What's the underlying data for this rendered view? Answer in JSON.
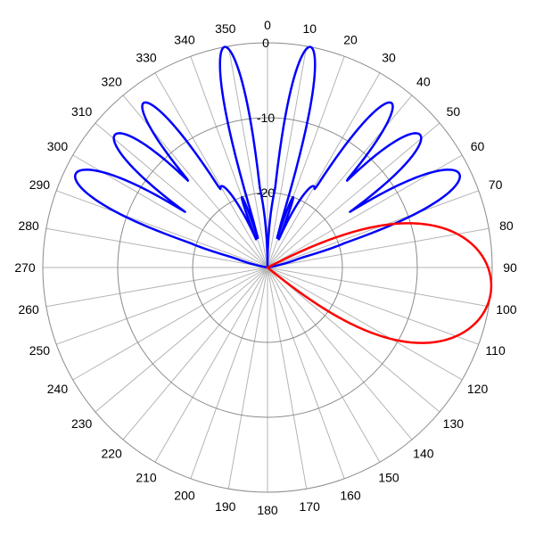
{
  "chart_data": {
    "type": "polar-line",
    "title": "",
    "angle_unit": "degrees",
    "angle_zero": "top",
    "angle_direction": "clockwise",
    "angle_ticks": [
      "0",
      "10",
      "20",
      "30",
      "40",
      "50",
      "60",
      "70",
      "80",
      "90",
      "100",
      "110",
      "120",
      "130",
      "140",
      "150",
      "160",
      "170",
      "180",
      "190",
      "200",
      "210",
      "220",
      "230",
      "240",
      "250",
      "260",
      "270",
      "280",
      "290",
      "300",
      "310",
      "320",
      "330",
      "340",
      "350"
    ],
    "radial_ticks": [
      "0",
      "-10",
      "-20",
      "-30"
    ],
    "radial_range_db": [
      -30,
      0
    ],
    "grid": true,
    "legend": "none",
    "series": [
      {
        "color": "#0000ff",
        "lobes_deg": [
          -64,
          -49,
          -37,
          -11,
          11,
          37,
          49,
          64
        ],
        "lobe_peak_db": [
          -1.5,
          -3,
          -2.5,
          0,
          0,
          -2.5,
          -3,
          -1.5
        ],
        "lobe_halfwidth_deg": [
          11,
          10,
          8,
          7,
          7,
          8,
          10,
          11
        ],
        "minor_lobes_deg": [
          -72,
          -45,
          -28,
          -20,
          20,
          28,
          45,
          72
        ],
        "minor_lobe_db": [
          -19,
          -23,
          -24,
          -20,
          -20,
          -24,
          -23,
          -19
        ],
        "floor_db": -30
      },
      {
        "color": "#ff0000",
        "main_lobe_deg": 96,
        "main_lobe_peak_db": 0,
        "main_lobe_halfwidth_deg": 17,
        "floor_db": -30
      }
    ]
  }
}
